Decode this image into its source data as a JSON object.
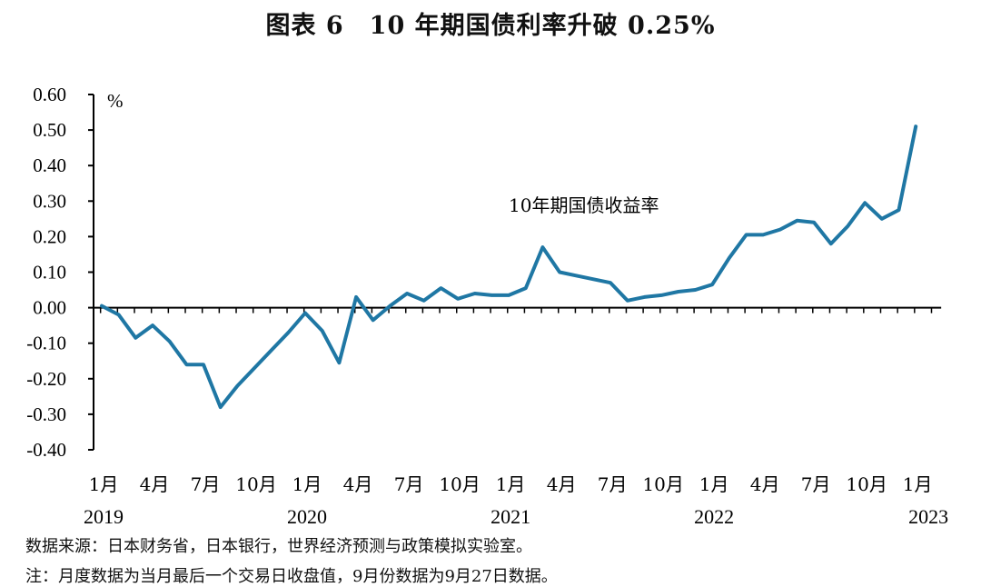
{
  "chart_data": {
    "type": "line",
    "title": "图表 6　10 年期国债利率升破 0.25%",
    "ylabel": "%",
    "ylim": [
      -0.4,
      0.6
    ],
    "yticks": [
      "0.60",
      "0.50",
      "0.40",
      "0.30",
      "0.20",
      "0.10",
      "0.00",
      "-0.10",
      "-0.20",
      "-0.30",
      "-0.40"
    ],
    "ytick_values": [
      0.6,
      0.5,
      0.4,
      0.3,
      0.2,
      0.1,
      0.0,
      -0.1,
      -0.2,
      -0.3,
      -0.4
    ],
    "x_tick_labels": [
      "1月",
      "4月",
      "7月",
      "10月",
      "1月",
      "4月",
      "7月",
      "10月",
      "1月",
      "4月",
      "7月",
      "10月",
      "1月",
      "4月",
      "7月",
      "10月",
      "1月"
    ],
    "x_tick_index": [
      0,
      3,
      6,
      9,
      12,
      15,
      18,
      21,
      24,
      27,
      30,
      33,
      36,
      39,
      42,
      45,
      48
    ],
    "year_labels": [
      {
        "label": "2019",
        "index": 0
      },
      {
        "label": "2020",
        "index": 12
      },
      {
        "label": "2021",
        "index": 24
      },
      {
        "label": "2022",
        "index": 36
      },
      {
        "label": "2023",
        "index": 48
      }
    ],
    "grid": false,
    "series": [
      {
        "name": "10年期国债收益率",
        "color": "#1f77a4",
        "values": [
          0.005,
          -0.02,
          -0.085,
          -0.05,
          -0.095,
          -0.16,
          -0.16,
          -0.28,
          -0.22,
          -0.17,
          -0.12,
          -0.07,
          -0.015,
          -0.065,
          -0.155,
          0.03,
          -0.035,
          0.005,
          0.04,
          0.02,
          0.055,
          0.025,
          0.04,
          0.035,
          0.035,
          0.055,
          0.17,
          0.1,
          0.09,
          0.08,
          0.07,
          0.02,
          0.03,
          0.035,
          0.045,
          0.05,
          0.065,
          0.14,
          0.205,
          0.205,
          0.22,
          0.245,
          0.24,
          0.18,
          0.23,
          0.295,
          0.25,
          0.275,
          0.51
        ]
      }
    ]
  },
  "footer": {
    "source": "数据来源：日本财务省，日本银行，世界经济预测与政策模拟实验室。",
    "note": "注：月度数据为当月最后一个交易日收盘值，9月份数据为9月27日数据。"
  }
}
